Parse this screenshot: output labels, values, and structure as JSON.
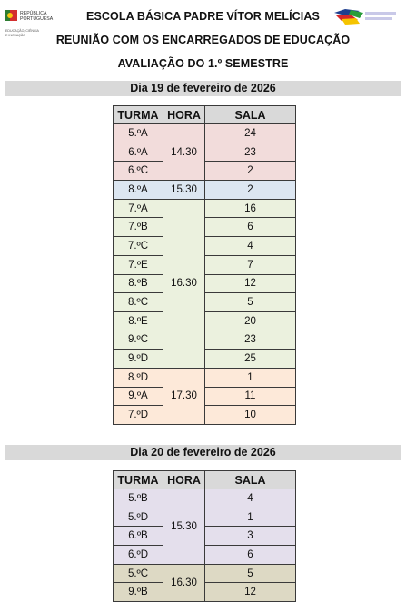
{
  "header": {
    "logo_left_text": [
      "REPÚBLICA",
      "PORTUGUESA",
      "EDUCAÇÃO, CIÊNCIA",
      "E INOVAÇÃO"
    ],
    "school_name": "ESCOLA BÁSICA PADRE VÍTOR MELÍCIAS",
    "meeting": "REUNIÃO COM OS ENCARREGADOS DE EDUCAÇÃO",
    "evaluation": "AVALIAÇÃO DO 1.º SEMESTRE"
  },
  "columns": {
    "turma": "TURMA",
    "hora": "HORA",
    "sala": "SALA"
  },
  "colors": {
    "pink": "#f2dcdb",
    "blue": "#dce6f1",
    "green": "#ebf1de",
    "orange": "#fde9d9",
    "lavender": "#e4dfec",
    "khaki": "#ddd9c4",
    "header_gray": "#d9d9d9"
  },
  "days": [
    {
      "title": "Dia 19 de fevereiro de 2026",
      "groups": [
        {
          "hora": "14.30",
          "rows": [
            {
              "turma": "5.ºA",
              "sala": "24"
            },
            {
              "turma": "6.ºA",
              "sala": "23"
            },
            {
              "turma": "6.ºC",
              "sala": "2"
            }
          ]
        },
        {
          "hora": "15.30",
          "rows": [
            {
              "turma": "8.ºA",
              "sala": "2"
            }
          ]
        },
        {
          "hora": "16.30",
          "rows": [
            {
              "turma": "7.ºA",
              "sala": "16"
            },
            {
              "turma": "7.ºB",
              "sala": "6"
            },
            {
              "turma": "7.ºC",
              "sala": "4"
            },
            {
              "turma": "7.ºE",
              "sala": "7"
            },
            {
              "turma": "8.ºB",
              "sala": "12"
            },
            {
              "turma": "8.ºC",
              "sala": "5"
            },
            {
              "turma": "8.ºE",
              "sala": "20"
            },
            {
              "turma": "9.ºC",
              "sala": "23"
            },
            {
              "turma": "9.ºD",
              "sala": "25"
            }
          ]
        },
        {
          "hora": "17.30",
          "rows": [
            {
              "turma": "8.ºD",
              "sala": "1"
            },
            {
              "turma": "9.ºA",
              "sala": "11"
            },
            {
              "turma": "7.ºD",
              "sala": "10"
            }
          ]
        }
      ]
    },
    {
      "title": "Dia 20 de fevereiro de 2026",
      "groups": [
        {
          "hora": "15.30",
          "rows": [
            {
              "turma": "5.ºB",
              "sala": "4"
            },
            {
              "turma": "5.ºD",
              "sala": "1"
            },
            {
              "turma": "6.ºB",
              "sala": "3"
            },
            {
              "turma": "6.ºD",
              "sala": "6"
            }
          ]
        },
        {
          "hora": "16.30",
          "rows": [
            {
              "turma": "5.ºC",
              "sala": "5"
            },
            {
              "turma": "9.ºB",
              "sala": "12"
            }
          ]
        }
      ]
    }
  ]
}
